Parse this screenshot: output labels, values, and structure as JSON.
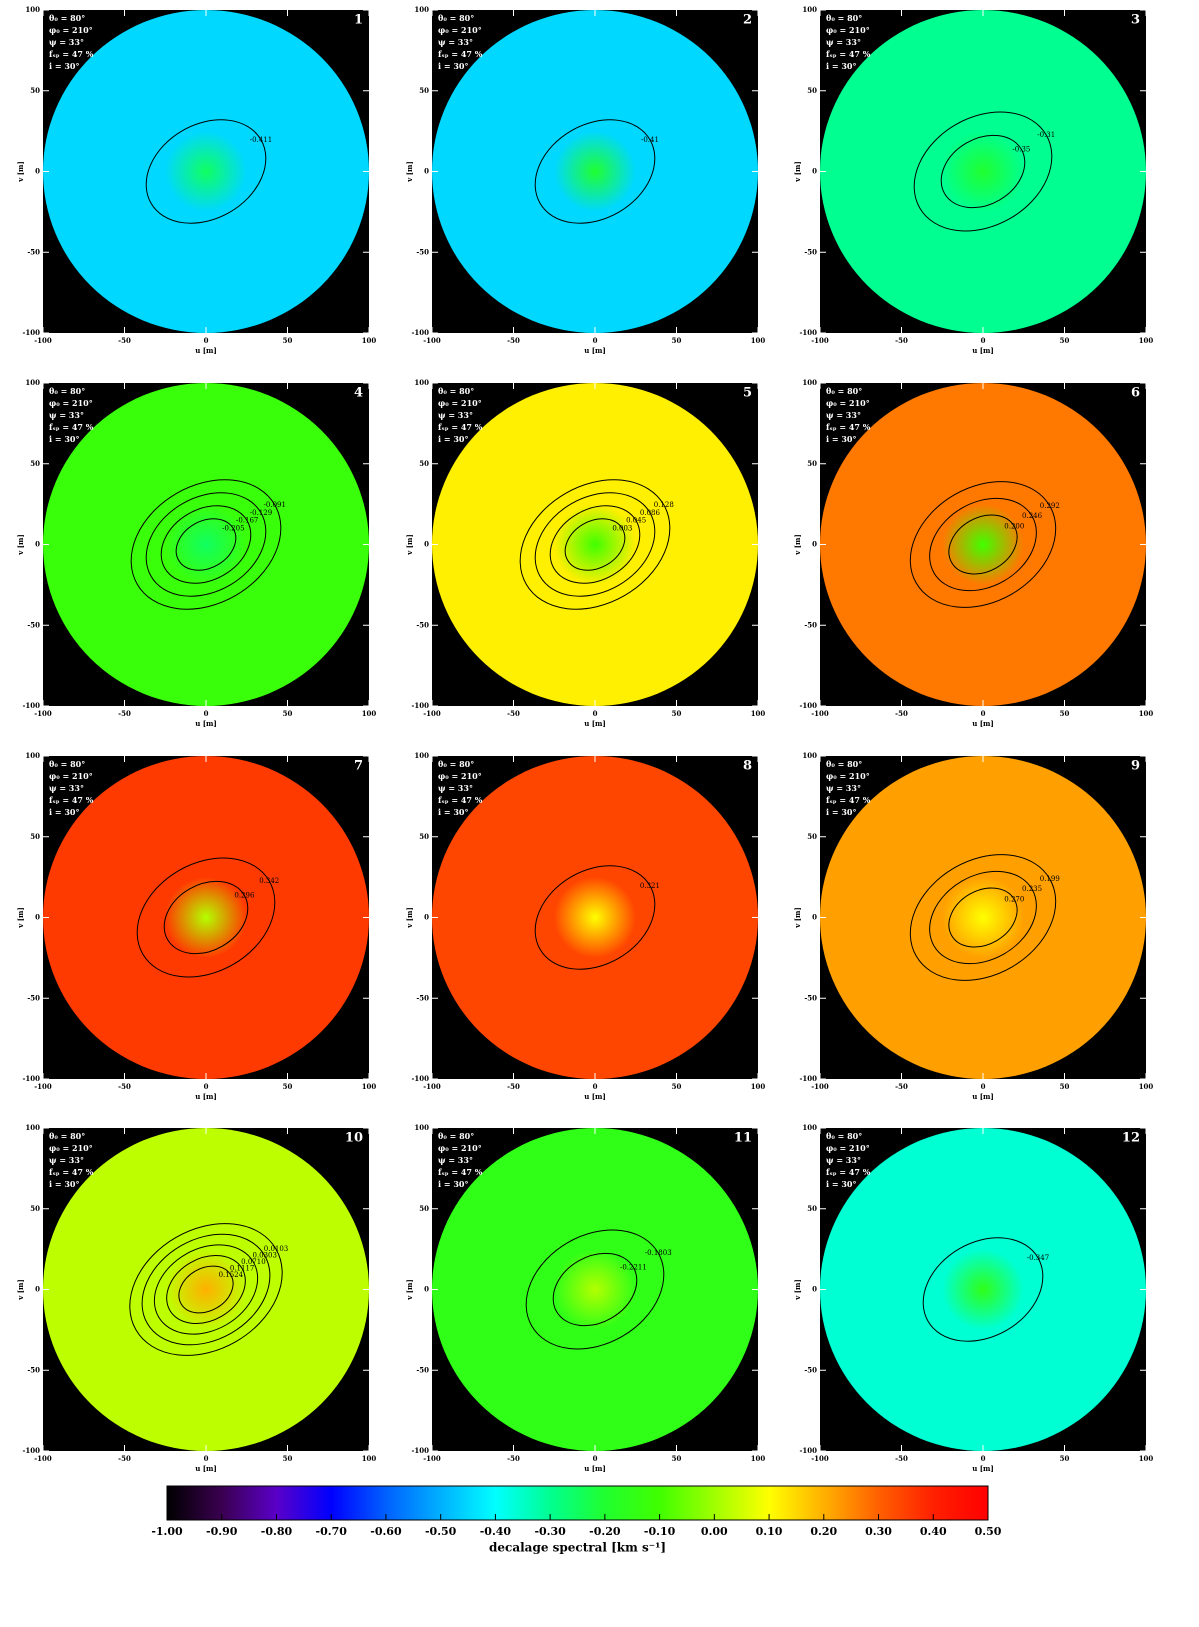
{
  "chart_data": {
    "type": "contour",
    "params": [
      "θ₀ = 80°",
      "φ₀ = 210°",
      "ψ = 33°",
      "fₛₚ = 47 %",
      "i = 30°"
    ],
    "xlabel": "u [m]",
    "ylabel": "v [m]",
    "xlim": [
      -100,
      100
    ],
    "ylim": [
      -100,
      100
    ],
    "xticks": [
      -100,
      -50,
      0,
      50,
      100
    ],
    "yticks": [
      -100,
      -50,
      0,
      50,
      100
    ],
    "panels": [
      {
        "label": "1",
        "background": -0.45,
        "center": -0.25,
        "contours": [
          -0.411
        ]
      },
      {
        "label": "2",
        "background": -0.45,
        "center": -0.2,
        "contours": [
          -0.41
        ]
      },
      {
        "label": "3",
        "background": -0.3,
        "center": -0.2,
        "contours": [
          -0.31,
          -0.35
        ]
      },
      {
        "label": "4",
        "background": -0.12,
        "center": -0.25,
        "contours": [
          -0.091,
          -0.129,
          -0.167,
          -0.205
        ]
      },
      {
        "label": "5",
        "background": 0.12,
        "center": -0.1,
        "contours": [
          0.128,
          0.086,
          0.045,
          0.003
        ]
      },
      {
        "label": "6",
        "background": 0.27,
        "center": -0.1,
        "contours": [
          0.292,
          0.246,
          {
            "value": 0.2,
            "label": "0.200"
          }
        ]
      },
      {
        "label": "7",
        "background": 0.36,
        "center": 0.02,
        "contours": [
          0.342,
          0.296
        ]
      },
      {
        "label": "8",
        "background": 0.34,
        "center": 0.1,
        "contours": [
          0.321
        ]
      },
      {
        "label": "9",
        "background": 0.22,
        "center": 0.1,
        "contours": [
          0.199,
          0.235,
          {
            "value": 0.27,
            "label": "0.270"
          }
        ]
      },
      {
        "label": "10",
        "background": 0.03,
        "center": 0.2,
        "contours": [
          0.0103,
          0.0303,
          {
            "value": 0.071,
            "label": "0.0710"
          },
          0.1117,
          0.1524
        ]
      },
      {
        "label": "11",
        "background": -0.15,
        "center": 0.02,
        "contours": [
          -0.1803,
          -0.2211
        ]
      },
      {
        "label": "12",
        "background": -0.36,
        "center": -0.15,
        "contours": [
          -0.347
        ]
      }
    ],
    "colorbar": {
      "label": "decalage spectral [km s⁻¹]",
      "lim": [
        -1,
        0.5
      ],
      "ticks": [
        {
          "value": -1,
          "label": "-1.00"
        },
        {
          "value": -0.9,
          "label": "-0.90"
        },
        {
          "value": -0.8,
          "label": "-0.80"
        },
        {
          "value": -0.7,
          "label": "-0.70"
        },
        {
          "value": -0.6,
          "label": "-0.60"
        },
        {
          "value": -0.5,
          "label": "-0.50"
        },
        {
          "value": -0.4,
          "label": "-0.40"
        },
        {
          "value": -0.3,
          "label": "-0.30"
        },
        {
          "value": -0.2,
          "label": "-0.20"
        },
        {
          "value": -0.1,
          "label": "-0.10"
        },
        {
          "value": 0,
          "label": "0.00"
        },
        {
          "value": 0.1,
          "label": "0.10"
        },
        {
          "value": 0.2,
          "label": "0.20"
        },
        {
          "value": 0.3,
          "label": "0.30"
        },
        {
          "value": 0.4,
          "label": "0.40"
        },
        {
          "value": 0.5,
          "label": "0.50"
        }
      ],
      "colormap": [
        [
          -1,
          "#000000"
        ],
        [
          -0.9,
          "#3a0050"
        ],
        [
          -0.8,
          "#5a00c8"
        ],
        [
          -0.7,
          "#0000ff"
        ],
        [
          -0.6,
          "#0060ff"
        ],
        [
          -0.5,
          "#00b0ff"
        ],
        [
          -0.4,
          "#00ffff"
        ],
        [
          -0.3,
          "#00ff90"
        ],
        [
          -0.2,
          "#20ff30"
        ],
        [
          -0.1,
          "#40ff00"
        ],
        [
          0,
          "#a0ff00"
        ],
        [
          0.1,
          "#ffff00"
        ],
        [
          0.2,
          "#ffb000"
        ],
        [
          0.3,
          "#ff6000"
        ],
        [
          0.4,
          "#ff2000"
        ],
        [
          0.5,
          "#ff0000"
        ]
      ]
    }
  }
}
